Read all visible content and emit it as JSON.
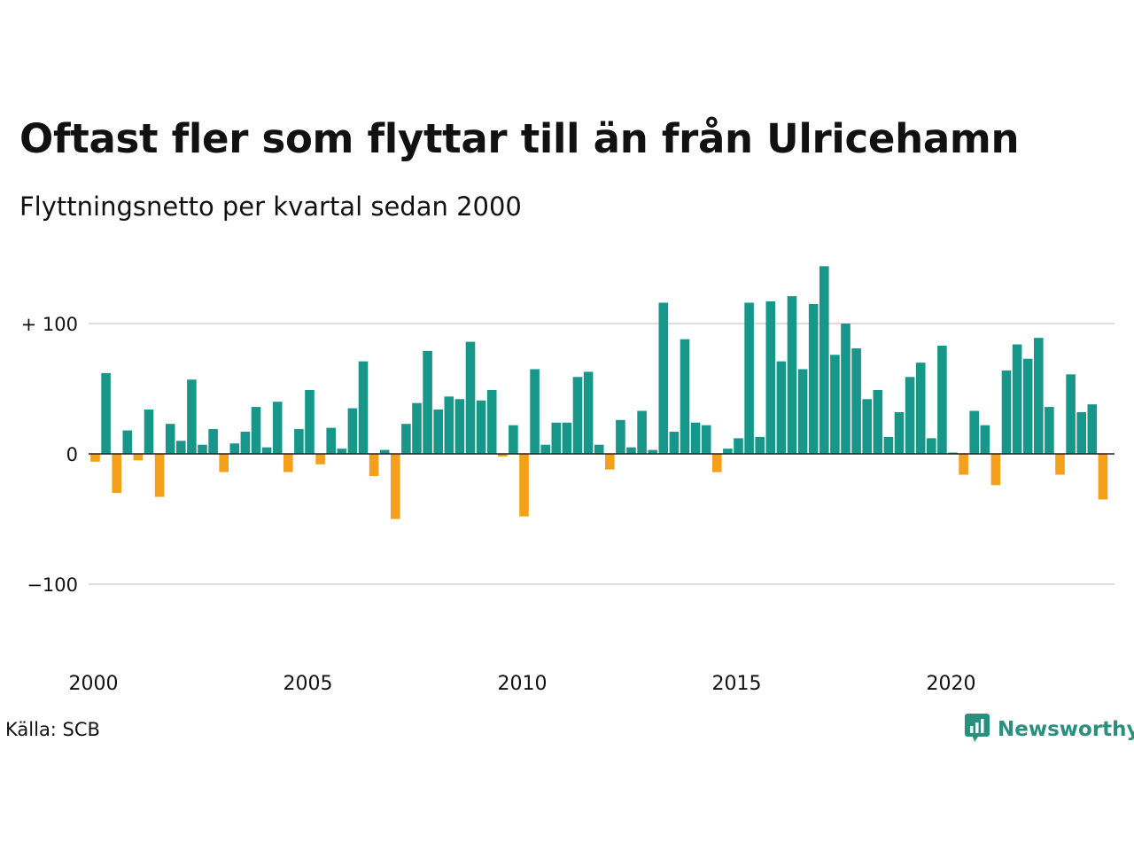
{
  "title": "Oftast fler som flyttar till än från Ulricehamn",
  "subtitle": "Flyttningsnetto per kvartal sedan 2000",
  "source": "Källa: SCB",
  "brand": {
    "name": "Newsworthy",
    "icon": "newsworthy-logo-icon",
    "color": "#2a8f7f"
  },
  "colors": {
    "positive": "#17978a",
    "negative": "#f5a01a",
    "grid": "#dddddd",
    "zero_line": "#222222"
  },
  "chart_data": {
    "type": "bar",
    "title": "Oftast fler som flyttar till än från Ulricehamn",
    "subtitle": "Flyttningsnetto per kvartal sedan 2000",
    "xlabel": "",
    "ylabel": "",
    "x_start_year": 2000,
    "x_start_quarter": 1,
    "values": [
      -6,
      62,
      -30,
      18,
      -5,
      34,
      -33,
      23,
      10,
      57,
      7,
      19,
      -14,
      8,
      17,
      36,
      5,
      40,
      -14,
      19,
      49,
      -8,
      20,
      4,
      35,
      71,
      -17,
      3,
      -50,
      23,
      39,
      79,
      34,
      44,
      42,
      86,
      41,
      49,
      -2,
      22,
      -48,
      65,
      7,
      24,
      24,
      59,
      63,
      7,
      -12,
      26,
      5,
      33,
      3,
      116,
      17,
      88,
      24,
      22,
      -14,
      4,
      12,
      116,
      13,
      117,
      71,
      121,
      65,
      115,
      144,
      76,
      100,
      81,
      42,
      49,
      13,
      32,
      59,
      70,
      12,
      83,
      1,
      -16,
      33,
      22,
      -24,
      64,
      84,
      73,
      89,
      36,
      -16,
      61,
      32,
      38,
      -35
    ],
    "ylim": [
      -150,
      150
    ],
    "yticks": [
      100,
      0,
      -100
    ],
    "ytick_labels": [
      "+ 100",
      "0",
      "−100"
    ],
    "xticks": [
      2000,
      2005,
      2010,
      2015,
      2020
    ],
    "xtick_labels": [
      "2000",
      "2005",
      "2010",
      "2015",
      "2020"
    ],
    "grid": true,
    "legend": "none"
  }
}
